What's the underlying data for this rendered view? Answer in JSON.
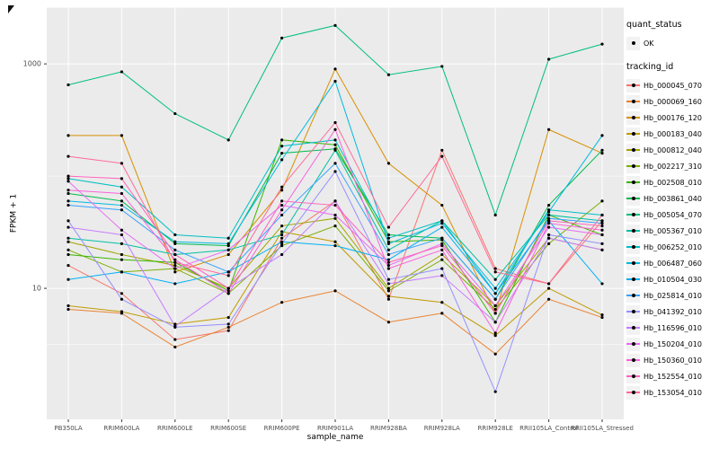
{
  "figure": {
    "background": "#FFFFFF",
    "panel_background": "#EBEBEB",
    "grid_color": "#FFFFFF",
    "point_color": "#000000",
    "tick_label_color": "#4D4D4D"
  },
  "axes": {
    "x_title": "sample_name",
    "y_title": "FPKM + 1",
    "y_tick_labels": [
      "1000",
      "10"
    ]
  },
  "legend": {
    "quant_status": {
      "title": "quant_status",
      "items": [
        {
          "label": "OK"
        }
      ]
    },
    "tracking_id": {
      "title": "tracking_id"
    }
  },
  "chart_data": {
    "type": "line",
    "title": "",
    "xlabel": "sample_name",
    "ylabel": "FPKM + 1",
    "y_scale": "log10",
    "y_ticks": [
      10,
      1000
    ],
    "y_minor_ticks": [
      3.162,
      100,
      3162
    ],
    "y_range": [
      0.68,
      3200
    ],
    "legend_position": "right",
    "quant_status": "OK",
    "grid": true,
    "categories": [
      "PB350LA",
      "RRIM600LA",
      "RRIM600LE",
      "RRIM600SE",
      "RRIM600PE",
      "RRIM901LA",
      "RRIM928BA",
      "RRIM928LA",
      "RRIM928LE",
      "RRII105LA_Control",
      "RRII105LA_Stressed"
    ],
    "series": [
      {
        "name": "Hb_000045_070",
        "color": "#F8766D",
        "values": [
          16,
          9,
          3.5,
          4.2,
          28,
          60,
          8,
          170,
          15,
          11,
          40
        ]
      },
      {
        "name": "Hb_000069_160",
        "color": "#EA8331",
        "values": [
          6.5,
          6,
          3,
          4.5,
          7.5,
          9.5,
          5,
          6,
          2.6,
          8,
          5.5
        ]
      },
      {
        "name": "Hb_000176_120",
        "color": "#D89000",
        "values": [
          230,
          230,
          14,
          20,
          75,
          900,
          130,
          55,
          6,
          260,
          160
        ]
      },
      {
        "name": "Hb_000183_040",
        "color": "#C09B00",
        "values": [
          7,
          6.2,
          4.8,
          5.5,
          32,
          26,
          8.5,
          7.5,
          3.8,
          10,
          5.8
        ]
      },
      {
        "name": "Hb_000812_040",
        "color": "#A3A500",
        "values": [
          26,
          20,
          16,
          10,
          36,
          42,
          10,
          20,
          7,
          28,
          22
        ]
      },
      {
        "name": "Hb_002217_310",
        "color": "#7CAE00",
        "values": [
          22,
          14,
          15,
          9,
          24,
          36,
          9.5,
          18,
          6.5,
          25,
          60
        ]
      },
      {
        "name": "Hb_002508_010",
        "color": "#39B600",
        "values": [
          20,
          18,
          17,
          9.5,
          210,
          190,
          26,
          27,
          5,
          45,
          30
        ]
      },
      {
        "name": "Hb_003861_040",
        "color": "#00BB4E",
        "values": [
          70,
          60,
          25,
          24,
          160,
          175,
          30,
          28,
          8,
          55,
          170
        ]
      },
      {
        "name": "Hb_005054_070",
        "color": "#00BF7D",
        "values": [
          650,
          850,
          360,
          210,
          1700,
          2200,
          800,
          950,
          45,
          1100,
          1500
        ]
      },
      {
        "name": "Hb_005367_010",
        "color": "#00C1A3",
        "values": [
          28,
          25,
          20,
          22,
          30,
          170,
          22,
          40,
          12,
          45,
          40
        ]
      },
      {
        "name": "Hb_006252_010",
        "color": "#00BFC4",
        "values": [
          95,
          80,
          30,
          28,
          185,
          210,
          28,
          40,
          9,
          50,
          45
        ]
      },
      {
        "name": "Hb_006487_060",
        "color": "#00BAE0",
        "values": [
          60,
          55,
          26,
          25,
          140,
          700,
          25,
          38,
          10,
          48,
          230
        ]
      },
      {
        "name": "Hb_010504_030",
        "color": "#00B0F6",
        "values": [
          12,
          14,
          11,
          14,
          26,
          24,
          18,
          35,
          9,
          40,
          11
        ]
      },
      {
        "name": "Hb_025814_010",
        "color": "#35A2FF",
        "values": [
          55,
          50,
          22,
          14,
          45,
          130,
          20,
          28,
          8,
          42,
          38
        ]
      },
      {
        "name": "Hb_041392_010",
        "color": "#9590FF",
        "values": [
          40,
          8,
          4.5,
          4.8,
          25,
          110,
          12,
          15,
          1.2,
          30,
          25
        ]
      },
      {
        "name": "Hb_116596_010",
        "color": "#C77CFF",
        "values": [
          35,
          30,
          4.6,
          10,
          20,
          60,
          11,
          13,
          5,
          28,
          22
        ]
      },
      {
        "name": "Hb_150204_010",
        "color": "#E76BF3",
        "values": [
          90,
          33,
          15,
          22,
          55,
          45,
          16,
          25,
          7,
          35,
          30
        ]
      },
      {
        "name": "Hb_150360_010",
        "color": "#FA62DB",
        "values": [
          75,
          70,
          18,
          9,
          50,
          260,
          15,
          22,
          4,
          38,
          33
        ]
      },
      {
        "name": "Hb_152554_010",
        "color": "#FF62BC",
        "values": [
          100,
          95,
          20,
          10,
          60,
          55,
          17,
          24,
          6,
          40,
          36
        ]
      },
      {
        "name": "Hb_153054_010",
        "color": "#FF6A98",
        "values": [
          150,
          130,
          17,
          13,
          80,
          300,
          35,
          150,
          14,
          11,
          45
        ]
      }
    ]
  }
}
